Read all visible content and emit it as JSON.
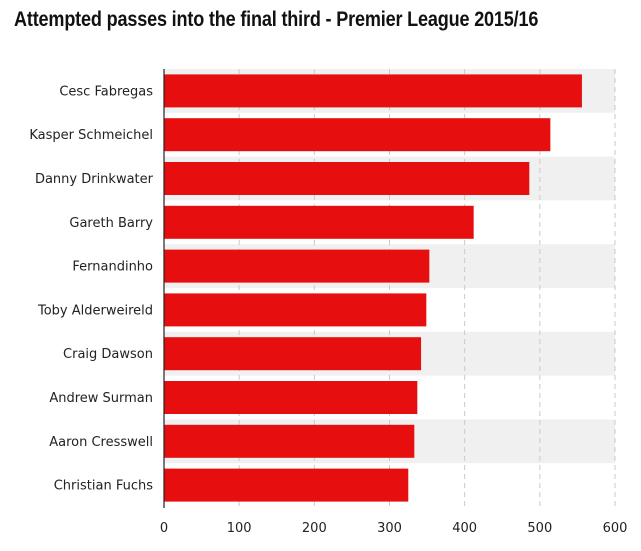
{
  "chart_data": {
    "type": "bar",
    "orientation": "horizontal",
    "title": "Attempted passes into the final third - Premier League 2015/16",
    "categories": [
      "Cesc Fabregas",
      "Kasper Schmeichel",
      "Danny Drinkwater",
      "Gareth Barry",
      "Fernandinho",
      "Toby Alderweireld",
      "Craig Dawson",
      "Andrew Surman",
      "Aaron Cresswell",
      "Christian Fuchs"
    ],
    "values": [
      556,
      514,
      486,
      412,
      353,
      349,
      342,
      337,
      333,
      325
    ],
    "xlim": [
      0,
      600
    ],
    "xticks": [
      "0",
      "100",
      "200",
      "300",
      "400",
      "500",
      "600"
    ],
    "grid": "vertical dashed",
    "bar_color": "#e60e0e",
    "band_color": "#f0f0f0"
  }
}
